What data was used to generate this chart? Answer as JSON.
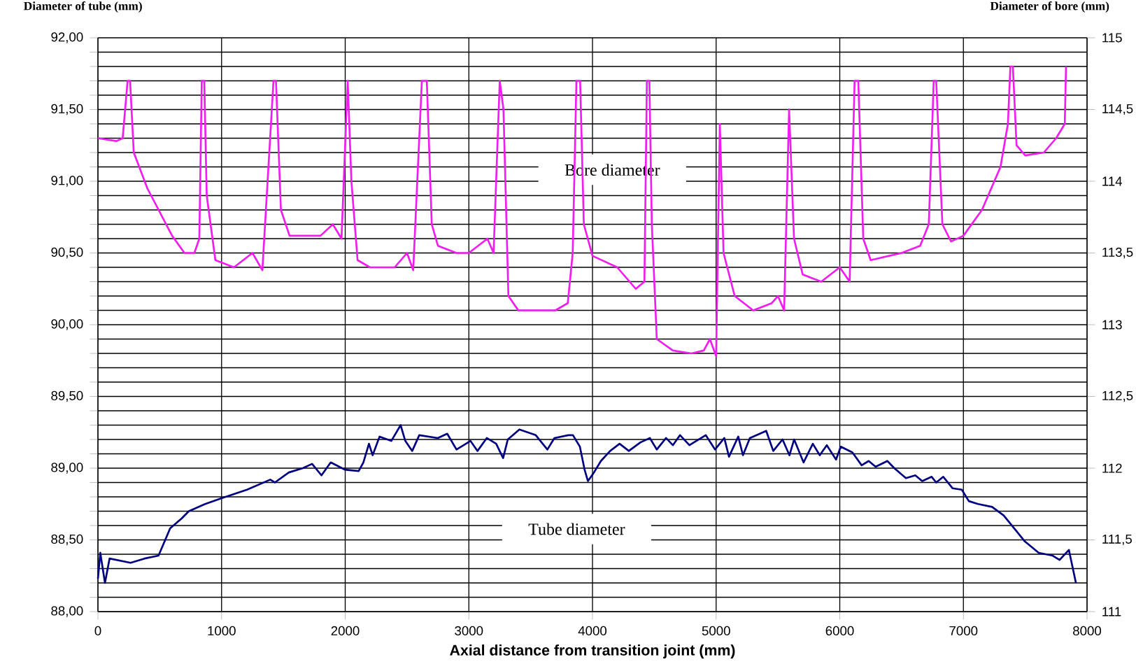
{
  "chart_data": {
    "type": "line",
    "xlabel": "Axial distance from transition joint (mm)",
    "ylabel": "Diameter of tube (mm)",
    "y2label": "Diameter of bore (mm)",
    "xlim": [
      0,
      8000
    ],
    "xticks": [
      0,
      1000,
      2000,
      3000,
      4000,
      5000,
      6000,
      7000,
      8000
    ],
    "ylim": [
      88,
      92
    ],
    "yticks": [
      {
        "value": 88,
        "label": "88,00"
      },
      {
        "value": 88.1,
        "label": null
      },
      {
        "value": 88.2,
        "label": null
      },
      {
        "value": 88.3,
        "label": null
      },
      {
        "value": 88.4,
        "label": null
      },
      {
        "value": 88.5,
        "label": "88,50"
      },
      {
        "value": 88.6,
        "label": null
      },
      {
        "value": 88.7,
        "label": null
      },
      {
        "value": 88.8,
        "label": null
      },
      {
        "value": 88.9,
        "label": null
      },
      {
        "value": 89,
        "label": "89,00"
      },
      {
        "value": 89.1,
        "label": null
      },
      {
        "value": 89.2,
        "label": null
      },
      {
        "value": 89.3,
        "label": null
      },
      {
        "value": 89.4,
        "label": null
      },
      {
        "value": 89.5,
        "label": "89,50"
      },
      {
        "value": 89.6,
        "label": null
      },
      {
        "value": 89.7,
        "label": null
      },
      {
        "value": 89.8,
        "label": null
      },
      {
        "value": 89.9,
        "label": null
      },
      {
        "value": 90,
        "label": "90,00"
      },
      {
        "value": 90.1,
        "label": null
      },
      {
        "value": 90.2,
        "label": null
      },
      {
        "value": 90.3,
        "label": null
      },
      {
        "value": 90.4,
        "label": null
      },
      {
        "value": 90.5,
        "label": "90,50"
      },
      {
        "value": 90.6,
        "label": null
      },
      {
        "value": 90.7,
        "label": null
      },
      {
        "value": 90.8,
        "label": null
      },
      {
        "value": 90.9,
        "label": null
      },
      {
        "value": 91,
        "label": "91,00"
      },
      {
        "value": 91.1,
        "label": null
      },
      {
        "value": 91.2,
        "label": null
      },
      {
        "value": 91.3,
        "label": null
      },
      {
        "value": 91.4,
        "label": null
      },
      {
        "value": 91.5,
        "label": "91,50"
      },
      {
        "value": 91.6,
        "label": null
      },
      {
        "value": 91.7,
        "label": null
      },
      {
        "value": 91.8,
        "label": null
      },
      {
        "value": 91.9,
        "label": null
      },
      {
        "value": 92,
        "label": "92,00"
      }
    ],
    "y2lim": [
      111,
      115
    ],
    "y2ticks": [
      111,
      {
        "value": 111.5,
        "label": "111,5"
      },
      112,
      {
        "value": 112.5,
        "label": "112,5"
      },
      113,
      {
        "value": 113.5,
        "label": "113,5"
      },
      114,
      {
        "value": 114.5,
        "label": "114,5"
      },
      115
    ],
    "grid": true,
    "marker": "none",
    "line_style": "solid",
    "series": [
      {
        "name": "Bore diameter",
        "color": "#f01cf0",
        "axis": "y2",
        "x": [
          0,
          150,
          200,
          240,
          260,
          290,
          400,
          600,
          700,
          780,
          820,
          840,
          860,
          880,
          950,
          1100,
          1250,
          1330,
          1420,
          1440,
          1480,
          1550,
          1800,
          1900,
          1970,
          2020,
          2050,
          2100,
          2200,
          2400,
          2500,
          2550,
          2620,
          2660,
          2700,
          2750,
          2900,
          3000,
          3150,
          3200,
          3250,
          3280,
          3320,
          3400,
          3700,
          3800,
          3840,
          3870,
          3900,
          3930,
          4000,
          4200,
          4350,
          4420,
          4440,
          4460,
          4480,
          4520,
          4650,
          4800,
          4900,
          4950,
          5000,
          5030,
          5060,
          5150,
          5300,
          5450,
          5500,
          5550,
          5590,
          5630,
          5700,
          5850,
          6000,
          6080,
          6120,
          6150,
          6190,
          6250,
          6500,
          6650,
          6720,
          6760,
          6780,
          6830,
          6900,
          7000,
          7150,
          7300,
          7360,
          7380,
          7400,
          7430,
          7500,
          7650,
          7750,
          7820,
          7830
        ],
        "values": [
          114.3,
          114.28,
          114.3,
          114.7,
          114.7,
          114.2,
          113.95,
          113.62,
          113.5,
          113.5,
          113.6,
          114.7,
          114.7,
          113.9,
          113.45,
          113.4,
          113.5,
          113.38,
          114.7,
          114.7,
          113.8,
          113.62,
          113.62,
          113.7,
          113.6,
          114.7,
          114.0,
          113.45,
          113.4,
          113.4,
          113.5,
          113.38,
          114.7,
          114.7,
          113.7,
          113.55,
          113.5,
          113.5,
          113.6,
          113.5,
          114.7,
          114.5,
          113.2,
          113.1,
          113.1,
          113.15,
          113.5,
          114.7,
          114.7,
          113.7,
          113.48,
          113.4,
          113.25,
          113.3,
          114.7,
          114.7,
          113.7,
          112.9,
          112.82,
          112.8,
          112.82,
          112.9,
          112.78,
          114.4,
          113.5,
          113.2,
          113.1,
          113.15,
          113.2,
          113.1,
          114.5,
          113.6,
          113.35,
          113.3,
          113.4,
          113.3,
          114.7,
          114.7,
          113.6,
          113.45,
          113.5,
          113.55,
          113.7,
          114.7,
          114.7,
          113.7,
          113.58,
          113.62,
          113.8,
          114.1,
          114.4,
          114.8,
          114.8,
          114.25,
          114.18,
          114.2,
          114.3,
          114.4,
          114.8
        ]
      },
      {
        "name": "Tube diameter",
        "color": "#000080",
        "x": [
          0,
          19,
          57,
          94,
          264,
          377,
          490,
          584,
          678,
          735,
          867,
          999,
          1206,
          1394,
          1431,
          1544,
          1657,
          1732,
          1808,
          1883,
          1996,
          2109,
          2147,
          2192,
          2222,
          2278,
          2373,
          2448,
          2486,
          2542,
          2599,
          2749,
          2825,
          2900,
          3013,
          3070,
          3145,
          3221,
          3277,
          3315,
          3409,
          3541,
          3635,
          3692,
          3805,
          3842,
          3898,
          3936,
          3963,
          4012,
          4068,
          4143,
          4219,
          4294,
          4388,
          4464,
          4520,
          4595,
          4650,
          4708,
          4784,
          4916,
          4991,
          5066,
          5104,
          5179,
          5217,
          5273,
          5405,
          5462,
          5537,
          5593,
          5631,
          5707,
          5782,
          5838,
          5895,
          5970,
          6008,
          6102,
          6177,
          6234,
          6290,
          6385,
          6441,
          6535,
          6611,
          6667,
          6743,
          6780,
          6837,
          6912,
          6987,
          7044,
          7119,
          7232,
          7326,
          7402,
          7496,
          7609,
          7722,
          7778,
          7853,
          7910
        ],
        "values": [
          88.23,
          88.41,
          88.2,
          88.37,
          88.34,
          88.37,
          88.39,
          88.58,
          88.65,
          88.7,
          88.75,
          88.79,
          88.85,
          88.92,
          88.9,
          88.97,
          89.0,
          89.03,
          88.95,
          89.04,
          88.99,
          88.98,
          89.04,
          89.17,
          89.09,
          89.22,
          89.19,
          89.3,
          89.19,
          89.12,
          89.23,
          89.21,
          89.24,
          89.13,
          89.19,
          89.12,
          89.21,
          89.17,
          89.07,
          89.2,
          89.27,
          89.23,
          89.13,
          89.21,
          89.23,
          89.23,
          89.15,
          88.99,
          88.91,
          88.97,
          89.05,
          89.12,
          89.17,
          89.12,
          89.18,
          89.21,
          89.13,
          89.21,
          89.16,
          89.23,
          89.16,
          89.23,
          89.13,
          89.21,
          89.08,
          89.22,
          89.09,
          89.21,
          89.26,
          89.12,
          89.2,
          89.09,
          89.2,
          89.04,
          89.17,
          89.09,
          89.16,
          89.06,
          89.15,
          89.11,
          89.02,
          89.05,
          89.01,
          89.05,
          89.0,
          88.93,
          88.95,
          88.91,
          88.94,
          88.9,
          88.94,
          88.86,
          88.85,
          88.77,
          88.75,
          88.73,
          88.67,
          88.59,
          88.49,
          88.41,
          88.39,
          88.36,
          88.43,
          88.2
        ]
      }
    ]
  }
}
